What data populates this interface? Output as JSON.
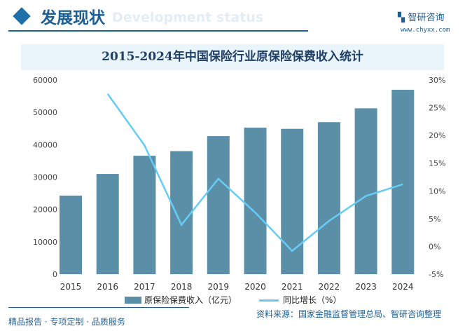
{
  "header": {
    "section_title": "发展现状",
    "section_subtitle": "Development status",
    "logo_text": "智研咨询",
    "url": "www.chyxx.com"
  },
  "footer": {
    "tagline": "精品报告 · 专项定制 · 品质服务",
    "source": "资料来源：国家金融监督管理总局、智研咨询整理"
  },
  "colors": {
    "bar": "#5b8fa8",
    "line": "#66ccf5",
    "accent": "#1f5f93"
  },
  "chart_data": {
    "type": "bar+line",
    "title": "2015-2024年中国保险行业原保险保费收入统计",
    "categories": [
      "2015",
      "2016",
      "2017",
      "2018",
      "2019",
      "2020",
      "2021",
      "2022",
      "2023",
      "2024"
    ],
    "series": [
      {
        "name": "原保险保费收入（亿元）",
        "type": "bar",
        "axis": "left",
        "values": [
          24283,
          30959,
          36581,
          38017,
          42645,
          45257,
          44900,
          46957,
          51247,
          56963
        ]
      },
      {
        "name": "同比增长（%）",
        "type": "line",
        "axis": "right",
        "values": [
          null,
          27.5,
          18.2,
          3.9,
          12.2,
          6.1,
          -0.8,
          4.6,
          9.1,
          11.2
        ]
      }
    ],
    "y_left": {
      "range": [
        0,
        60000
      ],
      "ticks": [
        "0",
        "10000",
        "20000",
        "30000",
        "40000",
        "50000",
        "60000"
      ]
    },
    "y_right": {
      "range": [
        -5,
        30
      ],
      "ticks": [
        "-5%",
        "0%",
        "5%",
        "10%",
        "15%",
        "20%",
        "25%",
        "30%"
      ]
    },
    "legend": "bottom",
    "grid": false
  }
}
